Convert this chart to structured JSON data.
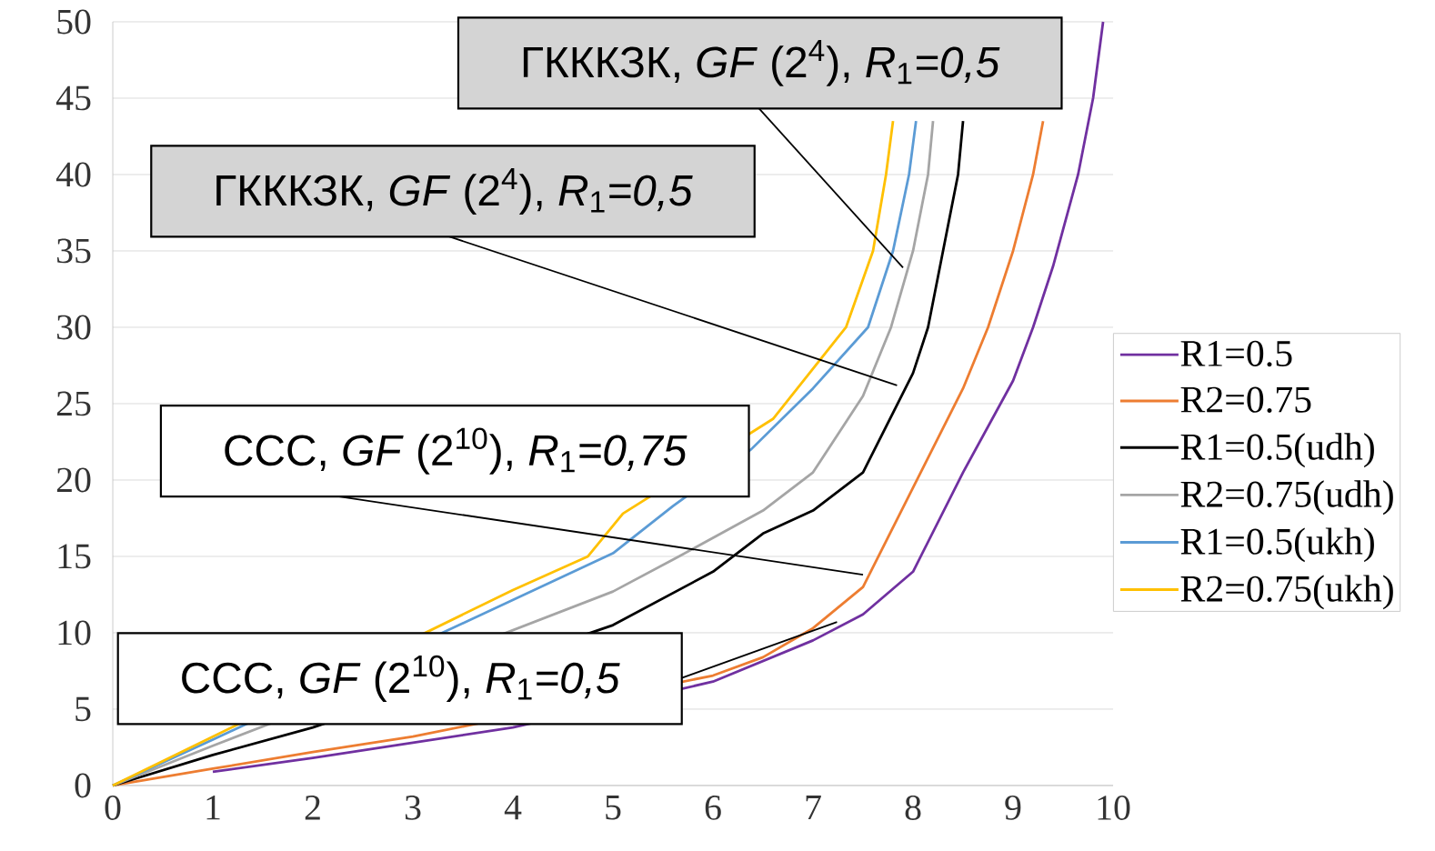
{
  "chart_data": {
    "type": "line",
    "series": [
      {
        "name": "R1=0.5",
        "color": "#7030a0",
        "x": [
          1,
          2,
          3,
          4,
          6,
          7,
          7.5,
          8,
          8.5,
          9,
          9.2,
          9.4,
          9.65,
          9.8,
          9.9
        ],
        "values": [
          0.9,
          1.8,
          2.8,
          3.8,
          6.8,
          9.5,
          11.2,
          14,
          20.5,
          26.5,
          30,
          34,
          40,
          45,
          50
        ]
      },
      {
        "name": "R2=0.75",
        "color": "#ed7d31",
        "x": [
          0,
          1,
          2,
          3,
          6,
          6.5,
          7,
          7.5,
          8,
          8.5,
          8.75,
          9,
          9.2,
          9.3
        ],
        "values": [
          0,
          1.1,
          2.2,
          3.2,
          7.2,
          8.4,
          10.3,
          13,
          19.5,
          26,
          30,
          35,
          40,
          43.5
        ]
      },
      {
        "name": "R1=0.5(udh)",
        "color": "#000000",
        "x": [
          0,
          1,
          2,
          5,
          6,
          6.5,
          7,
          7.5,
          8,
          8.15,
          8.3,
          8.45,
          8.5
        ],
        "values": [
          0,
          2,
          3.8,
          10.5,
          14,
          16.5,
          18,
          20.5,
          27,
          30,
          35,
          40,
          43.5
        ]
      },
      {
        "name": "R2=0.75(udh)",
        "color": "#a5a5a5",
        "x": [
          0,
          1,
          5,
          5.66,
          6.5,
          7,
          7.5,
          7.78,
          8,
          8.15,
          8.2
        ],
        "values": [
          0,
          2.6,
          12.7,
          15,
          18,
          20.5,
          25.5,
          30,
          35,
          40,
          43.5
        ]
      },
      {
        "name": "R1=0.5(ukh)",
        "color": "#5b9bd5",
        "x": [
          0,
          1,
          5,
          5.6,
          6.38,
          7,
          7.55,
          7.8,
          7.96,
          8.03
        ],
        "values": [
          0,
          3,
          15.2,
          18.3,
          22,
          26,
          30,
          35,
          40,
          43.5
        ]
      },
      {
        "name": "R2=0.75(ukh)",
        "color": "#ffc000",
        "x": [
          0,
          1,
          4,
          4.75,
          5.1,
          6.6,
          7.33,
          7.6,
          7.73,
          7.8
        ],
        "values": [
          0,
          3.2,
          12.8,
          15,
          17.8,
          24,
          30,
          35,
          40,
          43.5
        ]
      }
    ],
    "annotations": [
      {
        "text": "ГКККЗК, *GF* (2$^{4}$), *R*$_{1}$*=0,5*",
        "x": 7.9,
        "y": 33.9
      },
      {
        "text": "ГКККЗК, *GF* (2$^{4}$), *R*$_{1}$*=0,5*",
        "x": 7.84,
        "y": 26.2
      },
      {
        "text": "CCC, *GF* (2$^{10}$), *R*$_{1}$*=0,75*",
        "x": 7.5,
        "y": 13.8
      },
      {
        "text": "CCC, *GF* (2$^{10}$), *R*$_{1}$*=0,5*",
        "x": 7.24,
        "y": 10.7
      }
    ],
    "xlim": [
      0,
      10
    ],
    "ylim": [
      0,
      50
    ],
    "xticks": [
      0,
      1,
      2,
      3,
      4,
      5,
      6,
      7,
      8,
      9,
      10
    ],
    "yticks": [
      0,
      5,
      10,
      15,
      20,
      25,
      30,
      35,
      40,
      45,
      50
    ],
    "grid": "y",
    "legend": "right",
    "marker": "none",
    "line_style": "solid"
  }
}
